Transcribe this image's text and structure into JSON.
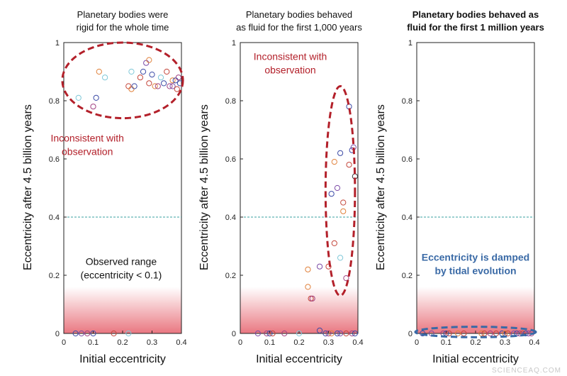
{
  "chart_data": [
    {
      "type": "scatter",
      "title": "Planetary bodies were rigid for the whole time",
      "title_lines": [
        "Planetary bodies were",
        "rigid for the whole time"
      ],
      "title_bold": false,
      "xlabel": "Initial eccentricity",
      "ylabel": "Eccentricity after 4.5 billion years",
      "xlim": [
        0,
        0.4
      ],
      "ylim": [
        0,
        1
      ],
      "xticks": [
        "0",
        "0.1",
        "0.2",
        "0.3",
        "0.4"
      ],
      "yticks": [
        "0",
        "0.2",
        "0.4",
        "0.6",
        "0.8",
        "1"
      ],
      "reference_line_y": 0.4,
      "observed_range_max": 0.1,
      "annotations": [
        {
          "lines": [
            "Inconsistent with",
            "observation"
          ],
          "color": "#b3202a",
          "at": [
            0.08,
            0.66
          ]
        },
        {
          "lines": [
            "Observed range",
            "(eccentricity < 0.1)"
          ],
          "color": "#111111",
          "at": [
            0.195,
            0.235
          ]
        }
      ],
      "ellipse": {
        "cx": 0.2,
        "cy": 0.87,
        "rx": 0.205,
        "ry": 0.13,
        "color": "#b3202a"
      },
      "points": [
        {
          "x": 0.05,
          "y": 0.81,
          "c": "#7fc8d8"
        },
        {
          "x": 0.1,
          "y": 0.78,
          "c": "#a04080"
        },
        {
          "x": 0.11,
          "y": 0.81,
          "c": "#3b4aa6"
        },
        {
          "x": 0.12,
          "y": 0.9,
          "c": "#e0803a"
        },
        {
          "x": 0.14,
          "y": 0.88,
          "c": "#7fc8d8"
        },
        {
          "x": 0.22,
          "y": 0.85,
          "c": "#c4453a"
        },
        {
          "x": 0.23,
          "y": 0.84,
          "c": "#e0803a"
        },
        {
          "x": 0.23,
          "y": 0.9,
          "c": "#7fc8d8"
        },
        {
          "x": 0.24,
          "y": 0.85,
          "c": "#3b4aa6"
        },
        {
          "x": 0.26,
          "y": 0.88,
          "c": "#c4453a"
        },
        {
          "x": 0.27,
          "y": 0.9,
          "c": "#3b4aa6"
        },
        {
          "x": 0.28,
          "y": 0.93,
          "c": "#7b4aa6"
        },
        {
          "x": 0.29,
          "y": 0.94,
          "c": "#e0803a"
        },
        {
          "x": 0.29,
          "y": 0.86,
          "c": "#c4453a"
        },
        {
          "x": 0.3,
          "y": 0.89,
          "c": "#3b4aa6"
        },
        {
          "x": 0.31,
          "y": 0.85,
          "c": "#e0803a"
        },
        {
          "x": 0.32,
          "y": 0.85,
          "c": "#a04080"
        },
        {
          "x": 0.33,
          "y": 0.88,
          "c": "#7fc8d8"
        },
        {
          "x": 0.34,
          "y": 0.86,
          "c": "#3b4aa6"
        },
        {
          "x": 0.35,
          "y": 0.9,
          "c": "#c4453a"
        },
        {
          "x": 0.36,
          "y": 0.85,
          "c": "#a04080"
        },
        {
          "x": 0.37,
          "y": 0.87,
          "c": "#e0803a"
        },
        {
          "x": 0.37,
          "y": 0.85,
          "c": "#7b4aa6"
        },
        {
          "x": 0.38,
          "y": 0.87,
          "c": "#3b4aa6"
        },
        {
          "x": 0.385,
          "y": 0.84,
          "c": "#c4453a"
        },
        {
          "x": 0.39,
          "y": 0.88,
          "c": "#a04080"
        },
        {
          "x": 0.395,
          "y": 0.86,
          "c": "#3b4aa6"
        },
        {
          "x": 0.04,
          "y": 0.0,
          "c": "#3b4aa6"
        },
        {
          "x": 0.06,
          "y": 0.0,
          "c": "#7b4aa6"
        },
        {
          "x": 0.08,
          "y": 0.0,
          "c": "#a04080"
        },
        {
          "x": 0.1,
          "y": 0.0,
          "c": "#3b4aa6"
        },
        {
          "x": 0.17,
          "y": 0.0,
          "c": "#c4453a"
        },
        {
          "x": 0.22,
          "y": 0.0,
          "c": "#7fc8d8"
        }
      ]
    },
    {
      "type": "scatter",
      "title": "Planetary bodies behaved as fluid for the first 1,000 years",
      "title_lines": [
        "Planetary bodies behaved",
        "as fluid for the first 1,000 years"
      ],
      "title_bold": false,
      "xlabel": "Initial eccentricity",
      "ylabel": "Eccentricity after 4.5 billion years",
      "xlim": [
        0,
        0.4
      ],
      "ylim": [
        0,
        1
      ],
      "xticks": [
        "0",
        "0.1",
        "0.2",
        "0.3",
        "0.4"
      ],
      "yticks": [
        "0",
        "0.2",
        "0.4",
        "0.6",
        "0.8",
        "1"
      ],
      "reference_line_y": 0.4,
      "observed_range_max": 0.1,
      "annotations": [
        {
          "lines": [
            "Inconsistent with",
            "observation"
          ],
          "color": "#b3202a",
          "at": [
            0.17,
            0.94
          ]
        }
      ],
      "ellipse": {
        "cx": 0.34,
        "cy": 0.49,
        "rx": 0.05,
        "ry": 0.36,
        "color": "#b3202a"
      },
      "points": [
        {
          "x": 0.37,
          "y": 0.78,
          "c": "#3b4aa6"
        },
        {
          "x": 0.38,
          "y": 0.63,
          "c": "#3b4aa6"
        },
        {
          "x": 0.385,
          "y": 0.64,
          "c": "#7b4aa6"
        },
        {
          "x": 0.34,
          "y": 0.62,
          "c": "#3b4aa6"
        },
        {
          "x": 0.32,
          "y": 0.59,
          "c": "#e0803a"
        },
        {
          "x": 0.37,
          "y": 0.58,
          "c": "#c4453a"
        },
        {
          "x": 0.39,
          "y": 0.54,
          "c": "#333333"
        },
        {
          "x": 0.33,
          "y": 0.5,
          "c": "#7b4aa6"
        },
        {
          "x": 0.31,
          "y": 0.48,
          "c": "#3b4aa6"
        },
        {
          "x": 0.35,
          "y": 0.45,
          "c": "#c4453a"
        },
        {
          "x": 0.35,
          "y": 0.42,
          "c": "#e0803a"
        },
        {
          "x": 0.32,
          "y": 0.31,
          "c": "#c4453a"
        },
        {
          "x": 0.34,
          "y": 0.26,
          "c": "#7fc8d8"
        },
        {
          "x": 0.3,
          "y": 0.23,
          "c": "#c4453a"
        },
        {
          "x": 0.23,
          "y": 0.22,
          "c": "#e0803a"
        },
        {
          "x": 0.27,
          "y": 0.23,
          "c": "#7b4aa6"
        },
        {
          "x": 0.36,
          "y": 0.19,
          "c": "#a04080"
        },
        {
          "x": 0.23,
          "y": 0.16,
          "c": "#e0803a"
        },
        {
          "x": 0.24,
          "y": 0.12,
          "c": "#c4453a"
        },
        {
          "x": 0.245,
          "y": 0.12,
          "c": "#a04080"
        },
        {
          "x": 0.06,
          "y": 0.0,
          "c": "#7b4aa6"
        },
        {
          "x": 0.09,
          "y": 0.0,
          "c": "#a04080"
        },
        {
          "x": 0.1,
          "y": 0.0,
          "c": "#3b4aa6"
        },
        {
          "x": 0.11,
          "y": 0.0,
          "c": "#c4453a"
        },
        {
          "x": 0.15,
          "y": 0.0,
          "c": "#a04080"
        },
        {
          "x": 0.2,
          "y": 0.0,
          "c": "#7fc8d8"
        },
        {
          "x": 0.29,
          "y": 0.0,
          "c": "#3b4aa6"
        },
        {
          "x": 0.3,
          "y": 0.0,
          "c": "#a04080"
        },
        {
          "x": 0.31,
          "y": 0.0,
          "c": "#e0803a"
        },
        {
          "x": 0.33,
          "y": 0.0,
          "c": "#3b4aa6"
        },
        {
          "x": 0.34,
          "y": 0.0,
          "c": "#7b4aa6"
        },
        {
          "x": 0.36,
          "y": 0.0,
          "c": "#c4453a"
        },
        {
          "x": 0.38,
          "y": 0.0,
          "c": "#a04080"
        },
        {
          "x": 0.39,
          "y": 0.0,
          "c": "#3b4aa6"
        },
        {
          "x": 0.27,
          "y": 0.01,
          "c": "#3b4aa6"
        }
      ]
    },
    {
      "type": "scatter",
      "title": "Planetary bodies behaved as fluid for the first 1 million years",
      "title_lines": [
        "Planetary bodies behaved as",
        "fluid for the first 1 million years"
      ],
      "title_bold": true,
      "xlabel": "Initial eccentricity",
      "ylabel": "Eccentricity after 4.5 billion years",
      "xlim": [
        0,
        0.4
      ],
      "ylim": [
        0,
        1
      ],
      "xticks": [
        "0",
        "0.1",
        "0.2",
        "0.3",
        "0.4"
      ],
      "yticks": [
        "0",
        "0.2",
        "0.4",
        "0.6",
        "0.8",
        "1"
      ],
      "reference_line_y": 0.4,
      "observed_range_max": 0.1,
      "annotations": [
        {
          "lines": [
            "Eccentricity is damped",
            "by tidal evolution"
          ],
          "color": "#3a6aa6",
          "at": [
            0.2,
            0.25
          ]
        }
      ],
      "ellipse": {
        "cx": 0.2,
        "cy": 0.005,
        "rx": 0.205,
        "ry": 0.018,
        "color": "#3a6aa6"
      },
      "points": [
        {
          "x": 0.02,
          "y": 0.0,
          "c": "#3b4aa6"
        },
        {
          "x": 0.05,
          "y": 0.0,
          "c": "#7b4aa6"
        },
        {
          "x": 0.09,
          "y": 0.0,
          "c": "#a04080"
        },
        {
          "x": 0.1,
          "y": 0.0,
          "c": "#3b4aa6"
        },
        {
          "x": 0.11,
          "y": 0.0,
          "c": "#c4453a"
        },
        {
          "x": 0.14,
          "y": 0.0,
          "c": "#e0803a"
        },
        {
          "x": 0.16,
          "y": 0.0,
          "c": "#c4453a"
        },
        {
          "x": 0.22,
          "y": 0.0,
          "c": "#e0803a"
        },
        {
          "x": 0.23,
          "y": 0.0,
          "c": "#c4453a"
        },
        {
          "x": 0.25,
          "y": 0.0,
          "c": "#a04080"
        },
        {
          "x": 0.27,
          "y": 0.0,
          "c": "#c4453a"
        },
        {
          "x": 0.29,
          "y": 0.0,
          "c": "#3b4aa6"
        },
        {
          "x": 0.3,
          "y": 0.0,
          "c": "#e0803a"
        },
        {
          "x": 0.31,
          "y": 0.0,
          "c": "#c4453a"
        },
        {
          "x": 0.33,
          "y": 0.0,
          "c": "#7b4aa6"
        },
        {
          "x": 0.34,
          "y": 0.0,
          "c": "#3b4aa6"
        },
        {
          "x": 0.35,
          "y": 0.0,
          "c": "#a04080"
        },
        {
          "x": 0.36,
          "y": 0.0,
          "c": "#c4453a"
        },
        {
          "x": 0.37,
          "y": 0.0,
          "c": "#3b4aa6"
        },
        {
          "x": 0.38,
          "y": 0.0,
          "c": "#7b4aa6"
        },
        {
          "x": 0.39,
          "y": 0.0,
          "c": "#a04080"
        }
      ]
    }
  ],
  "watermark": "SCIENCEAQ.COM",
  "colors": {
    "inconsistent_red": "#b3202a",
    "damped_blue": "#3a6aa6",
    "observed_band": "#e8707a",
    "reference_line": "#3aa0a0"
  }
}
